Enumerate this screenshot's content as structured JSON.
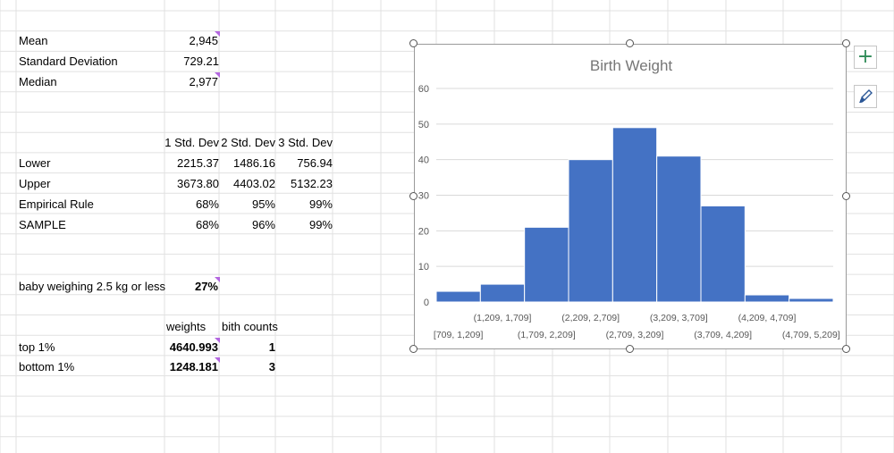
{
  "sheet": {
    "labels": {
      "mean": "Mean",
      "std_dev": "Standard Deviation",
      "median": "Median",
      "lower": "Lower",
      "upper": "Upper",
      "empirical_rule": "Empirical Rule",
      "sample": "SAMPLE",
      "baby_weighing": "baby weighing 2.5 kg or less",
      "top_1": "top 1%",
      "bottom_1": "bottom 1%"
    },
    "values": {
      "mean": "2,945",
      "std_dev": "729.21",
      "median": "2,977",
      "baby_weighing": "27%"
    },
    "std_table": {
      "headers": [
        "1 Std. Dev",
        "2 Std. Dev",
        "3 Std. Dev"
      ],
      "lower": [
        "2215.37",
        "1486.16",
        "756.94"
      ],
      "upper": [
        "3673.80",
        "4403.02",
        "5132.23"
      ],
      "empirical_rule": [
        "68%",
        "95%",
        "99%"
      ],
      "sample": [
        "68%",
        "96%",
        "99%"
      ]
    },
    "extremes": {
      "headers": [
        "weights",
        "bith counts"
      ],
      "top": [
        "4640.993",
        "1"
      ],
      "bottom": [
        "1248.181",
        "3"
      ]
    }
  },
  "chart_data": {
    "type": "bar",
    "title": "Birth Weight",
    "categories": [
      "[709, 1,209]",
      "(1,209, 1,709]",
      "(1,709, 2,209]",
      "(2,209, 2,709]",
      "(2,709, 3,209]",
      "(3,209, 3,709]",
      "(3,709, 4,209]",
      "(4,209, 4,709]",
      "(4,709, 5,209]"
    ],
    "values": [
      3,
      5,
      21,
      40,
      49,
      41,
      27,
      2,
      1
    ],
    "ylim": [
      0,
      60
    ],
    "yticks": [
      "0",
      "10",
      "20",
      "30",
      "40",
      "50",
      "60"
    ],
    "bar_color": "#4472c4",
    "grid": true
  },
  "chart_tools": {
    "add_element_icon": "plus-icon",
    "style_icon": "brush-icon"
  }
}
